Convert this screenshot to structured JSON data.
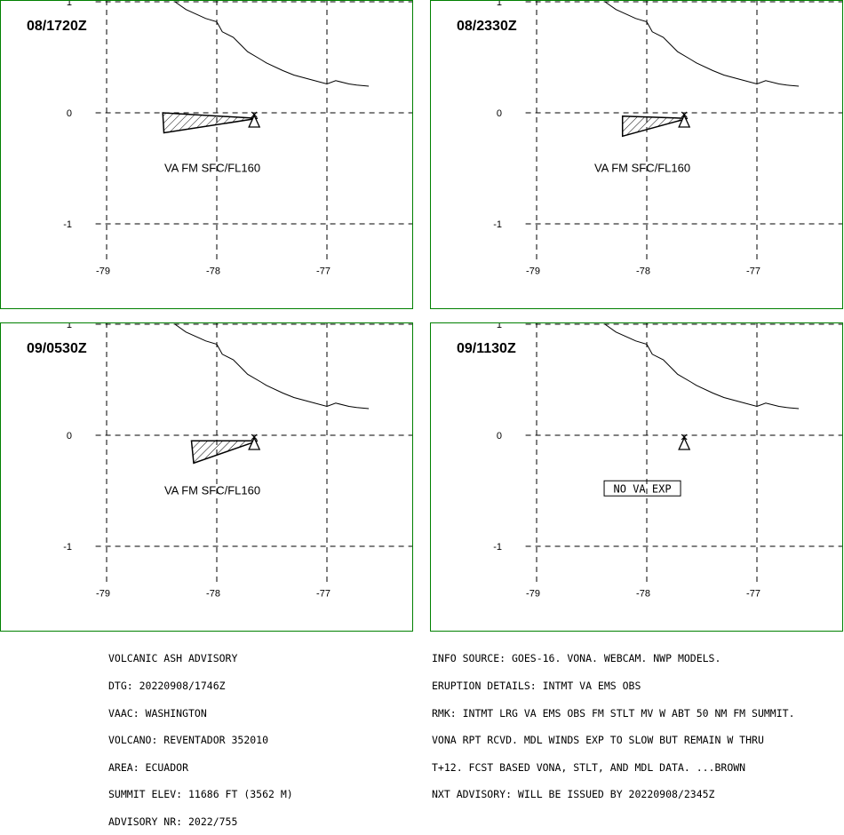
{
  "panels": [
    {
      "time": "08/1720Z",
      "label": "VA FM SFC/FL160",
      "label_boxed": false,
      "ash_polygon": [
        [
          -78.49,
          -0.0
        ],
        [
          -77.63,
          -0.05
        ],
        [
          -78.48,
          -0.18
        ]
      ]
    },
    {
      "time": "08/2330Z",
      "label": "VA FM SFC/FL160",
      "label_boxed": false,
      "ash_polygon": [
        [
          -78.22,
          -0.03
        ],
        [
          -77.63,
          -0.05
        ],
        [
          -78.22,
          -0.21
        ]
      ]
    },
    {
      "time": "09/0530Z",
      "label": "VA FM SFC/FL160",
      "label_boxed": false,
      "ash_polygon": [
        [
          -78.23,
          -0.05
        ],
        [
          -77.63,
          -0.05
        ],
        [
          -78.21,
          -0.25
        ]
      ]
    },
    {
      "time": "09/1130Z",
      "label": "NO VA EXP",
      "label_boxed": true,
      "ash_polygon": []
    }
  ],
  "map": {
    "lon_ticks": [
      "-79",
      "-78",
      "-77"
    ],
    "lat_ticks": [
      "1",
      "0",
      "-1"
    ],
    "volcano": {
      "lon": -77.66,
      "lat": -0.08
    },
    "coastline": [
      [
        -78.38,
        1.0
      ],
      [
        -78.28,
        0.93
      ],
      [
        -78.1,
        0.85
      ],
      [
        -78.0,
        0.82
      ],
      [
        -77.95,
        0.73
      ],
      [
        -77.85,
        0.68
      ],
      [
        -77.77,
        0.6
      ],
      [
        -77.72,
        0.55
      ],
      [
        -77.6,
        0.48
      ],
      [
        -77.55,
        0.45
      ],
      [
        -77.4,
        0.38
      ],
      [
        -77.3,
        0.34
      ],
      [
        -77.15,
        0.3
      ],
      [
        -77.0,
        0.26
      ],
      [
        -76.92,
        0.29
      ],
      [
        -76.8,
        0.26
      ],
      [
        -76.73,
        0.25
      ],
      [
        -76.62,
        0.24
      ]
    ],
    "line_color": "#000000",
    "border_color": "#008000",
    "hatch_color": "#000000"
  },
  "advisory_left": [
    "VOLCANIC ASH ADVISORY",
    "DTG: 20220908/1746Z",
    "VAAC: WASHINGTON",
    "VOLCANO: REVENTADOR 352010",
    "AREA: ECUADOR",
    "SUMMIT ELEV: 11686 FT (3562 M)",
    "ADVISORY NR: 2022/755"
  ],
  "advisory_right": [
    "INFO SOURCE: GOES-16. VONA. WEBCAM. NWP MODELS.",
    "ERUPTION DETAILS: INTMT VA EMS OBS",
    "RMK: INTMT LRG VA EMS OBS FM STLT MV W ABT 50 NM FM SUMMIT.",
    "VONA RPT RCVD. MDL WINDS EXP TO SLOW BUT REMAIN W THRU",
    "T+12. FCST BASED VONA, STLT, AND MDL DATA. ...BROWN",
    "NXT ADVISORY: WILL BE ISSUED BY 20220908/2345Z"
  ]
}
